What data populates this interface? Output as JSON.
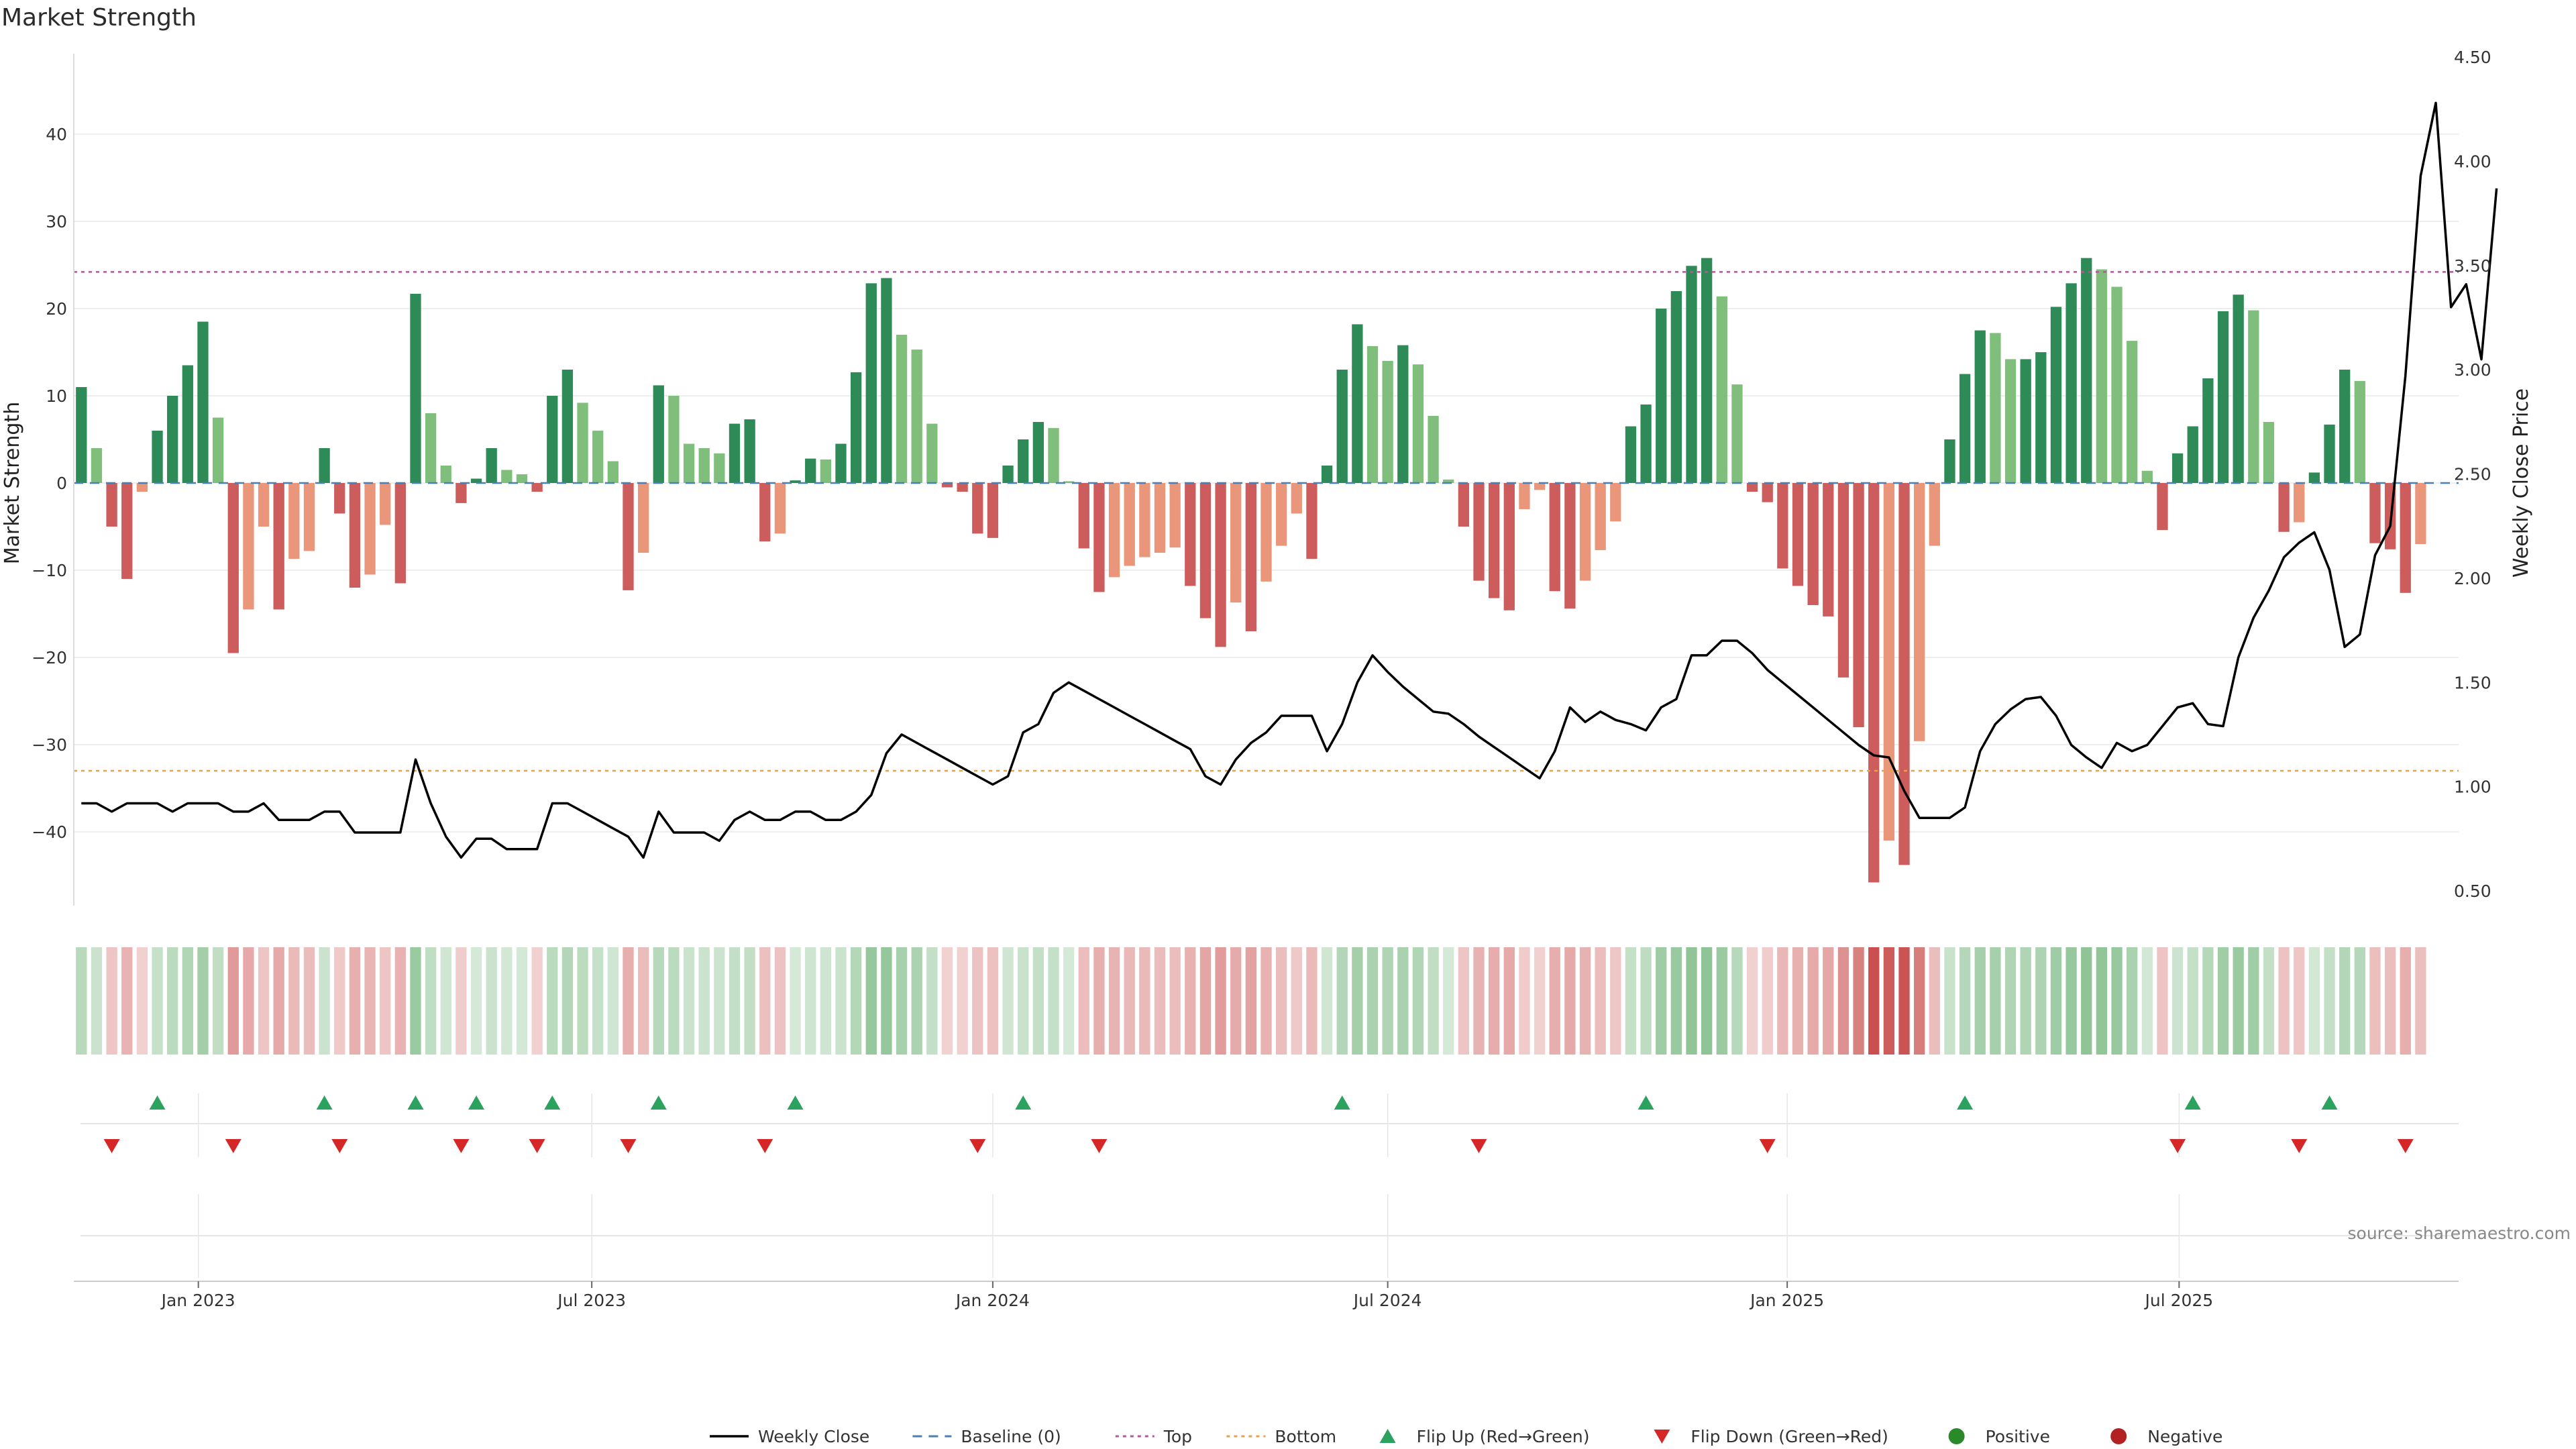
{
  "chart_data": {
    "type": "bar",
    "title": "Market Strength",
    "ylabel": "Market Strength",
    "y2label": "Weekly Close Price",
    "ylim": [
      -49,
      50
    ],
    "y2lim": [
      0.4,
      4.5
    ],
    "yticks": [
      -40,
      -30,
      -20,
      -10,
      0,
      10,
      20,
      30,
      40
    ],
    "y2ticks": [
      "0.50",
      "1.00",
      "1.50",
      "2.00",
      "2.50",
      "3.00",
      "3.50",
      "4.00",
      "4.50"
    ],
    "xlim": [
      0,
      157
    ],
    "xticks": [
      {
        "label": "Jan 2023",
        "week": 8.2
      },
      {
        "label": "Jul 2023",
        "week": 34.1
      },
      {
        "label": "Jan 2024",
        "week": 60.5
      },
      {
        "label": "Jul 2024",
        "week": 86.5
      },
      {
        "label": "Jan 2025",
        "week": 112.8
      },
      {
        "label": "Jul 2025",
        "week": 138.6
      }
    ],
    "top_line": 24.2,
    "bottom_line": -33,
    "strength": [
      11,
      4,
      -5,
      -11,
      -1,
      6,
      10,
      13.5,
      18.5,
      7.5,
      -19.5,
      -14.5,
      -5,
      -14.5,
      -8.7,
      -7.8,
      4,
      -3.5,
      -12,
      -10.5,
      -4.8,
      -11.5,
      21.7,
      8,
      2,
      -2.3,
      0.5,
      4,
      1.5,
      1,
      -1,
      10,
      13,
      9.2,
      6,
      2.5,
      -12.3,
      -8,
      11.2,
      10,
      4.5,
      4,
      3.4,
      6.8,
      7.3,
      -6.7,
      -5.8,
      0.3,
      2.8,
      2.7,
      4.5,
      12.7,
      22.9,
      23.5,
      17,
      15.3,
      6.8,
      -0.5,
      -1,
      -5.8,
      -6.3,
      2,
      5,
      7,
      6.3,
      0.2,
      -7.5,
      -12.5,
      -10.8,
      -9.5,
      -8.5,
      -8,
      -7.4,
      -11.8,
      -15.5,
      -18.8,
      -13.7,
      -17,
      -11.3,
      -7.2,
      -3.5,
      -8.7,
      2,
      13,
      18.2,
      15.7,
      14,
      15.8,
      13.6,
      7.7,
      0.4,
      -5,
      -11.2,
      -13.2,
      -14.6,
      -3,
      -0.8,
      -12.4,
      -14.4,
      -11.2,
      -7.7,
      -4.4,
      6.5,
      9,
      20,
      22,
      24.9,
      25.8,
      21.4,
      11.3,
      -1,
      -2.2,
      -9.8,
      -11.8,
      -14,
      -15.3,
      -22.3,
      -28,
      -45.8,
      -41,
      -43.8,
      -29.6,
      -7.2,
      5,
      12.5,
      17.5,
      17.2,
      14.2,
      14.2,
      15,
      20.2,
      22.9,
      25.8,
      24.5,
      22.5,
      16.3,
      1.4,
      -5.4,
      3.4,
      6.5,
      12,
      19.7,
      21.6,
      19.8,
      7,
      -5.6,
      -4.5,
      1.2,
      6.7,
      13,
      11.7,
      -6.9,
      -7.6,
      -12.6,
      -7
    ],
    "close": [
      0.92,
      0.92,
      0.88,
      0.92,
      0.92,
      0.92,
      0.88,
      0.92,
      0.92,
      0.92,
      0.88,
      0.88,
      0.92,
      0.84,
      0.84,
      0.84,
      0.88,
      0.88,
      0.78,
      0.78,
      0.78,
      0.78,
      1.13,
      0.92,
      0.76,
      0.66,
      0.75,
      0.75,
      0.7,
      0.7,
      0.7,
      0.92,
      0.92,
      0.88,
      0.84,
      0.8,
      0.76,
      0.66,
      0.88,
      0.78,
      0.78,
      0.78,
      0.74,
      0.84,
      0.88,
      0.84,
      0.84,
      0.88,
      0.88,
      0.84,
      0.84,
      0.88,
      0.96,
      1.16,
      1.25,
      1.21,
      1.17,
      1.13,
      1.09,
      1.05,
      1.01,
      1.05,
      1.26,
      1.3,
      1.45,
      1.5,
      1.46,
      1.42,
      1.38,
      1.34,
      1.3,
      1.26,
      1.22,
      1.18,
      1.05,
      1.01,
      1.13,
      1.21,
      1.26,
      1.34,
      1.34,
      1.34,
      1.17,
      1.3,
      1.5,
      1.63,
      1.55,
      1.48,
      1.42,
      1.36,
      1.35,
      1.3,
      1.24,
      1.19,
      1.14,
      1.09,
      1.04,
      1.17,
      1.38,
      1.31,
      1.36,
      1.32,
      1.3,
      1.27,
      1.38,
      1.42,
      1.63,
      1.63,
      1.7,
      1.7,
      1.64,
      1.56,
      1.5,
      1.44,
      1.38,
      1.32,
      1.26,
      1.2,
      1.15,
      1.14,
      0.98,
      0.85,
      0.85,
      0.85,
      0.9,
      1.17,
      1.3,
      1.37,
      1.42,
      1.43,
      1.34,
      1.2,
      1.14,
      1.09,
      1.21,
      1.17,
      1.2,
      1.29,
      1.38,
      1.4,
      1.3,
      1.29,
      1.62,
      1.81,
      1.94,
      2.1,
      2.17,
      2.22,
      2.04,
      1.67,
      1.73,
      2.11,
      2.25,
      2.97,
      3.93,
      4.28,
      3.3,
      3.41,
      3.05,
      3.87
    ],
    "flip_up_weeks": [
      5,
      16,
      22,
      26,
      31,
      38,
      47,
      62,
      83,
      103,
      124,
      139,
      148
    ],
    "flip_down_weeks": [
      2,
      10,
      17,
      25,
      30,
      36,
      45,
      59,
      67,
      92,
      111,
      138,
      146,
      153
    ],
    "legend": [
      {
        "key": "weekly-close",
        "label": "Weekly Close"
      },
      {
        "key": "baseline",
        "label": "Baseline (0)"
      },
      {
        "key": "top",
        "label": "Top"
      },
      {
        "key": "bottom",
        "label": "Bottom"
      },
      {
        "key": "flip-up",
        "label": "Flip Up (Red→Green)"
      },
      {
        "key": "flip-down",
        "label": "Flip Down (Green→Red)"
      },
      {
        "key": "positive",
        "label": "Positive"
      },
      {
        "key": "negative",
        "label": "Negative"
      }
    ],
    "source": "source: sharemaestro.com"
  },
  "colors": {
    "pos_dark": "#2e8b57",
    "pos_light": "#7fbf7b",
    "neg_dark": "#cd5c5c",
    "neg_light": "#e9967a",
    "line": "#000000",
    "baseline": "#4a7fb5",
    "top": "#b5569a",
    "bottom": "#e8a04a",
    "flip_up": "#2ca25f",
    "flip_down": "#d62728",
    "positive": "#2a8a2a",
    "negative": "#b22222",
    "grid": "#e8e8e8"
  }
}
